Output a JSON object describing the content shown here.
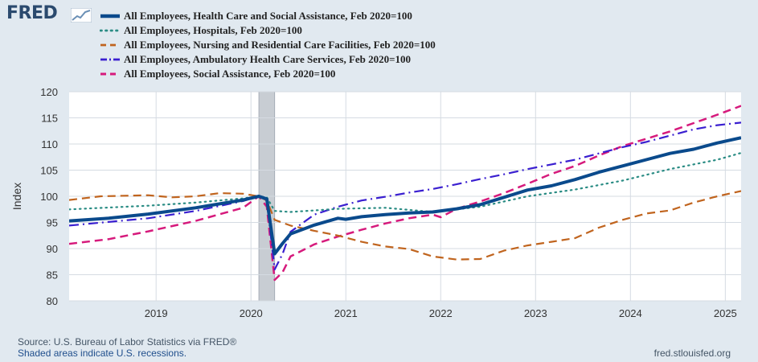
{
  "brand": {
    "name": "FRED"
  },
  "colors": {
    "background": "#e1e9f0",
    "plot_bg": "#ffffff",
    "grid": "#d5dbe2",
    "recession": "#c8cdd3"
  },
  "footer": {
    "source": "Source: U.S. Bureau of Labor Statistics via FRED®",
    "recession_note": "Shaded areas indicate U.S. recessions.",
    "site": "fred.stlouisfed.org"
  },
  "chart_data": {
    "type": "line",
    "ylabel": "Index",
    "ylim": [
      80,
      120
    ],
    "xlim": [
      "2018-02",
      "2025-03"
    ],
    "y_ticks": [
      80,
      85,
      90,
      95,
      100,
      105,
      110,
      115,
      120
    ],
    "x_ticks": [
      "2019",
      "2020",
      "2021",
      "2022",
      "2023",
      "2024",
      "2025"
    ],
    "x_tick_dates": [
      "2019-01",
      "2020-01",
      "2021-01",
      "2022-01",
      "2023-01",
      "2024-01",
      "2025-01"
    ],
    "grid": true,
    "legend_position": "top-left",
    "recessions": [
      {
        "start": "2020-02",
        "end": "2020-04"
      }
    ],
    "series": [
      {
        "name": "All Employees, Health Care and Social Assistance, Feb 2020=100",
        "color": "#0a4a8c",
        "style": "solid",
        "width": 4,
        "points": [
          [
            "2018-02",
            95.3
          ],
          [
            "2018-07",
            95.8
          ],
          [
            "2018-12",
            96.6
          ],
          [
            "2019-06",
            97.8
          ],
          [
            "2019-12",
            99.3
          ],
          [
            "2020-02",
            100
          ],
          [
            "2020-03",
            99.5
          ],
          [
            "2020-04",
            89.0
          ],
          [
            "2020-05",
            91.0
          ],
          [
            "2020-06",
            92.8
          ],
          [
            "2020-09",
            94.5
          ],
          [
            "2020-12",
            95.8
          ],
          [
            "2021-01",
            95.6
          ],
          [
            "2021-03",
            96.1
          ],
          [
            "2021-06",
            96.5
          ],
          [
            "2021-09",
            96.8
          ],
          [
            "2021-12",
            97.0
          ],
          [
            "2022-03",
            97.6
          ],
          [
            "2022-06",
            98.4
          ],
          [
            "2022-09",
            99.8
          ],
          [
            "2022-12",
            101.2
          ],
          [
            "2023-03",
            102.0
          ],
          [
            "2023-06",
            103.2
          ],
          [
            "2023-09",
            104.6
          ],
          [
            "2023-12",
            105.8
          ],
          [
            "2024-03",
            107.0
          ],
          [
            "2024-06",
            108.2
          ],
          [
            "2024-09",
            109.0
          ],
          [
            "2024-12",
            110.2
          ],
          [
            "2025-03",
            111.2
          ]
        ]
      },
      {
        "name": "All Employees, Hospitals, Feb 2020=100",
        "color": "#2a8c84",
        "style": "dotted",
        "width": 2.2,
        "points": [
          [
            "2018-02",
            97.5
          ],
          [
            "2018-12",
            98.2
          ],
          [
            "2019-06",
            98.8
          ],
          [
            "2019-12",
            99.6
          ],
          [
            "2020-02",
            100
          ],
          [
            "2020-03",
            99.8
          ],
          [
            "2020-04",
            97.2
          ],
          [
            "2020-06",
            97.0
          ],
          [
            "2020-09",
            97.3
          ],
          [
            "2020-12",
            97.6
          ],
          [
            "2021-06",
            97.8
          ],
          [
            "2021-12",
            97.0
          ],
          [
            "2022-06",
            98.0
          ],
          [
            "2022-12",
            100.0
          ],
          [
            "2023-06",
            101.3
          ],
          [
            "2023-12",
            103.0
          ],
          [
            "2024-06",
            105.2
          ],
          [
            "2024-12",
            107.0
          ],
          [
            "2025-03",
            108.3
          ]
        ]
      },
      {
        "name": "All Employees, Nursing and Residential Care Facilities, Feb 2020=100",
        "color": "#c0641e",
        "style": "dashed",
        "width": 2.2,
        "points": [
          [
            "2018-02",
            99.3
          ],
          [
            "2018-06",
            100.0
          ],
          [
            "2018-12",
            100.2
          ],
          [
            "2019-03",
            99.8
          ],
          [
            "2019-06",
            100.0
          ],
          [
            "2019-09",
            100.6
          ],
          [
            "2019-12",
            100.5
          ],
          [
            "2020-02",
            100
          ],
          [
            "2020-03",
            99.2
          ],
          [
            "2020-04",
            95.5
          ],
          [
            "2020-06",
            94.4
          ],
          [
            "2020-09",
            93.4
          ],
          [
            "2020-12",
            92.5
          ],
          [
            "2021-03",
            91.3
          ],
          [
            "2021-06",
            90.4
          ],
          [
            "2021-09",
            89.9
          ],
          [
            "2021-12",
            88.5
          ],
          [
            "2022-03",
            87.9
          ],
          [
            "2022-06",
            88.0
          ],
          [
            "2022-09",
            89.6
          ],
          [
            "2022-12",
            90.6
          ],
          [
            "2023-03",
            91.3
          ],
          [
            "2023-06",
            92.0
          ],
          [
            "2023-09",
            94.0
          ],
          [
            "2023-12",
            95.5
          ],
          [
            "2024-03",
            96.7
          ],
          [
            "2024-06",
            97.3
          ],
          [
            "2024-09",
            98.8
          ],
          [
            "2024-12",
            100.0
          ],
          [
            "2025-03",
            101.0
          ]
        ]
      },
      {
        "name": "All Employees, Ambulatory Health Care Services, Feb 2020=100",
        "color": "#3a1fd0",
        "style": "dashdot",
        "width": 2.2,
        "points": [
          [
            "2018-02",
            94.4
          ],
          [
            "2018-12",
            95.8
          ],
          [
            "2019-06",
            97.2
          ],
          [
            "2019-12",
            99.1
          ],
          [
            "2020-02",
            100
          ],
          [
            "2020-03",
            99.2
          ],
          [
            "2020-04",
            86.0
          ],
          [
            "2020-05",
            89.0
          ],
          [
            "2020-06",
            93.2
          ],
          [
            "2020-09",
            96.5
          ],
          [
            "2020-12",
            98.0
          ],
          [
            "2021-03",
            99.2
          ],
          [
            "2021-06",
            99.9
          ],
          [
            "2021-09",
            100.7
          ],
          [
            "2021-12",
            101.4
          ],
          [
            "2022-03",
            102.3
          ],
          [
            "2022-06",
            103.3
          ],
          [
            "2022-09",
            104.2
          ],
          [
            "2022-12",
            105.2
          ],
          [
            "2023-03",
            106.1
          ],
          [
            "2023-06",
            107.0
          ],
          [
            "2023-09",
            108.2
          ],
          [
            "2023-12",
            109.4
          ],
          [
            "2024-03",
            110.4
          ],
          [
            "2024-06",
            111.6
          ],
          [
            "2024-09",
            112.8
          ],
          [
            "2024-12",
            113.6
          ],
          [
            "2025-03",
            114.1
          ]
        ]
      },
      {
        "name": "All Employees, Social Assistance, Feb 2020=100",
        "color": "#d61a7c",
        "style": "dashed",
        "width": 2.5,
        "points": [
          [
            "2018-02",
            90.9
          ],
          [
            "2018-07",
            91.8
          ],
          [
            "2018-12",
            93.3
          ],
          [
            "2019-06",
            95.3
          ],
          [
            "2019-12",
            97.8
          ],
          [
            "2020-02",
            100
          ],
          [
            "2020-03",
            98.0
          ],
          [
            "2020-04",
            84.0
          ],
          [
            "2020-05",
            85.5
          ],
          [
            "2020-06",
            88.5
          ],
          [
            "2020-09",
            90.8
          ],
          [
            "2020-12",
            92.3
          ],
          [
            "2021-03",
            93.6
          ],
          [
            "2021-06",
            94.8
          ],
          [
            "2021-09",
            95.8
          ],
          [
            "2021-12",
            96.5
          ],
          [
            "2022-01",
            96.0
          ],
          [
            "2022-03",
            97.6
          ],
          [
            "2022-06",
            99.0
          ],
          [
            "2022-09",
            100.6
          ],
          [
            "2022-12",
            102.4
          ],
          [
            "2023-03",
            104.3
          ],
          [
            "2023-06",
            105.8
          ],
          [
            "2023-09",
            107.8
          ],
          [
            "2023-12",
            109.6
          ],
          [
            "2024-03",
            111.0
          ],
          [
            "2024-06",
            112.4
          ],
          [
            "2024-09",
            114.0
          ],
          [
            "2024-12",
            115.6
          ],
          [
            "2025-03",
            117.3
          ]
        ]
      }
    ]
  }
}
